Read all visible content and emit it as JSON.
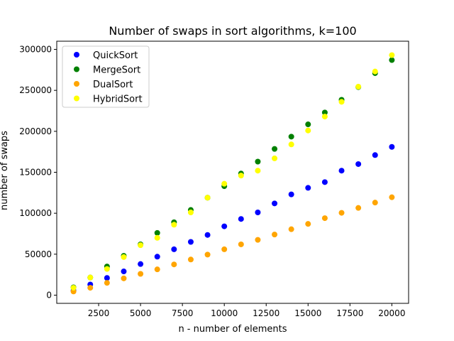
{
  "chart_data": {
    "type": "scatter",
    "title": "Number of swaps in sort algorithms, k=100",
    "xlabel": "n - number of elements",
    "ylabel": "number of swaps",
    "xlim": [
      0,
      21000
    ],
    "ylim": [
      -10000,
      310000
    ],
    "xticks": [
      2500,
      5000,
      7500,
      10000,
      12500,
      15000,
      17500,
      20000
    ],
    "yticks": [
      0,
      50000,
      100000,
      150000,
      200000,
      250000,
      300000
    ],
    "grid": false,
    "legend_position": "top-left",
    "x": [
      1000,
      2000,
      3000,
      4000,
      5000,
      6000,
      7000,
      8000,
      9000,
      10000,
      11000,
      12000,
      13000,
      14000,
      15000,
      16000,
      17000,
      18000,
      19000,
      20000
    ],
    "series": [
      {
        "name": "QuickSort",
        "color": "#0000ff",
        "values": [
          5500,
          13000,
          21000,
          29000,
          38000,
          47000,
          56000,
          65000,
          73500,
          84000,
          93000,
          101000,
          112000,
          123000,
          131000,
          138000,
          152000,
          160000,
          171000,
          181000
        ]
      },
      {
        "name": "MergeSort",
        "color": "#008000",
        "values": [
          9500,
          21500,
          35000,
          48000,
          62000,
          76000,
          89000,
          104000,
          119000,
          133000,
          148500,
          163000,
          178500,
          193500,
          208500,
          223000,
          238500,
          254000,
          271000,
          287000
        ]
      },
      {
        "name": "DualSort",
        "color": "#ffa500",
        "values": [
          4500,
          9000,
          15000,
          20500,
          26000,
          31500,
          37500,
          43500,
          49500,
          56000,
          62000,
          67500,
          74000,
          80500,
          87000,
          94000,
          100500,
          106500,
          113000,
          119500
        ]
      },
      {
        "name": "HybridSort",
        "color": "#ffff00",
        "values": [
          9000,
          21500,
          32000,
          46500,
          61000,
          70000,
          86000,
          101000,
          119000,
          136000,
          146000,
          152000,
          167000,
          184000,
          201000,
          218000,
          236000,
          254500,
          273000,
          293000
        ]
      }
    ]
  }
}
